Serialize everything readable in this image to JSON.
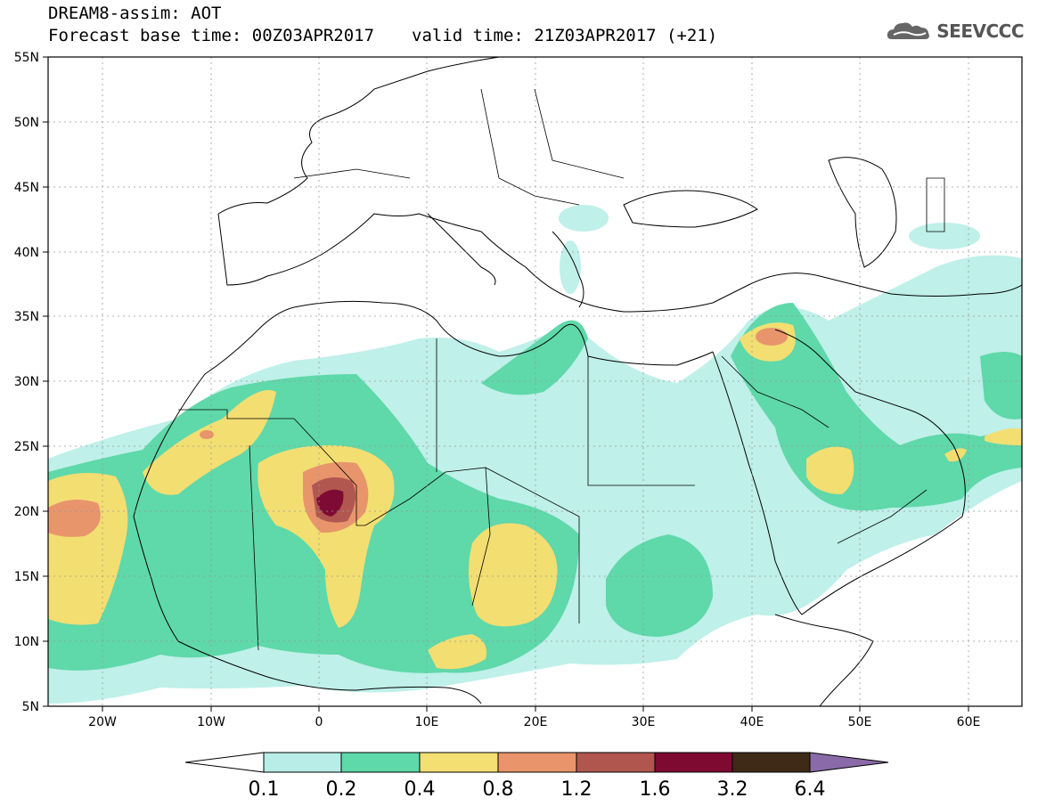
{
  "header": {
    "title": "DREAM8-assim: AOT",
    "base_time": "Forecast base time: 00Z03APR2017",
    "valid_time": "valid time: 21Z03APR2017 (+21)"
  },
  "logo": {
    "text": "SEEVCCC"
  },
  "map": {
    "lat_ticks": [
      "55N",
      "50N",
      "45N",
      "40N",
      "35N",
      "30N",
      "25N",
      "20N",
      "15N",
      "10N",
      "5N"
    ],
    "lon_ticks": [
      "20W",
      "10W",
      "0",
      "10E",
      "20E",
      "30E",
      "40E",
      "50E",
      "60E"
    ]
  },
  "colorbar": {
    "labels": [
      "0.1",
      "0.2",
      "0.4",
      "0.8",
      "1.2",
      "1.6",
      "3.2",
      "6.4"
    ],
    "colors": [
      "#b7ede6",
      "#5ed9aa",
      "#f4df72",
      "#e9946a",
      "#b1564f",
      "#7e0a32",
      "#3e2a17",
      "#8a6aa8"
    ]
  },
  "colors": {
    "c1": "#bff0e9",
    "c2": "#5fd8aa",
    "c3": "#f3de72",
    "c4": "#e8956c",
    "c5": "#b2574f",
    "c6": "#7e0b33"
  }
}
